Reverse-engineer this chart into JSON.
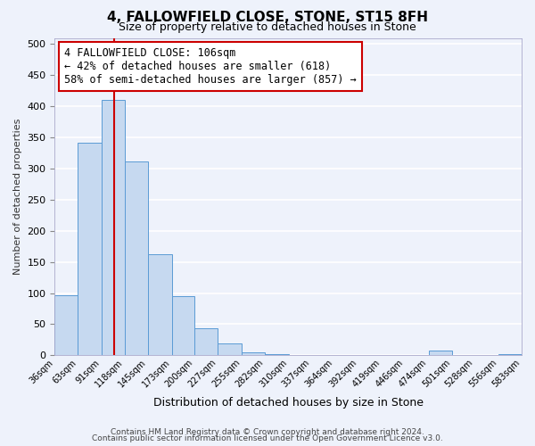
{
  "title": "4, FALLOWFIELD CLOSE, STONE, ST15 8FH",
  "subtitle": "Size of property relative to detached houses in Stone",
  "xlabel": "Distribution of detached houses by size in Stone",
  "ylabel": "Number of detached properties",
  "bar_color": "#c6d9f0",
  "bar_edge_color": "#5b9bd5",
  "background_color": "#eef2fb",
  "grid_color": "#ffffff",
  "bin_edges": [
    36,
    63,
    91,
    118,
    145,
    173,
    200,
    227,
    255,
    282,
    310,
    337,
    364,
    392,
    419,
    446,
    474,
    501,
    528,
    556,
    583
  ],
  "bin_labels": [
    "36sqm",
    "63sqm",
    "91sqm",
    "118sqm",
    "145sqm",
    "173sqm",
    "200sqm",
    "227sqm",
    "255sqm",
    "282sqm",
    "310sqm",
    "337sqm",
    "364sqm",
    "392sqm",
    "419sqm",
    "446sqm",
    "474sqm",
    "501sqm",
    "528sqm",
    "556sqm",
    "583sqm"
  ],
  "counts": [
    97,
    341,
    410,
    311,
    163,
    95,
    43,
    19,
    5,
    2,
    0,
    0,
    0,
    0,
    0,
    0,
    8,
    0,
    0,
    2
  ],
  "property_size": 106,
  "vline_color": "#cc0000",
  "annotation_text": "4 FALLOWFIELD CLOSE: 106sqm\n← 42% of detached houses are smaller (618)\n58% of semi-detached houses are larger (857) →",
  "annotation_box_color": "#ffffff",
  "annotation_box_edge": "#cc0000",
  "ylim": [
    0,
    510
  ],
  "yticks": [
    0,
    50,
    100,
    150,
    200,
    250,
    300,
    350,
    400,
    450,
    500
  ],
  "footer_line1": "Contains HM Land Registry data © Crown copyright and database right 2024.",
  "footer_line2": "Contains public sector information licensed under the Open Government Licence v3.0."
}
